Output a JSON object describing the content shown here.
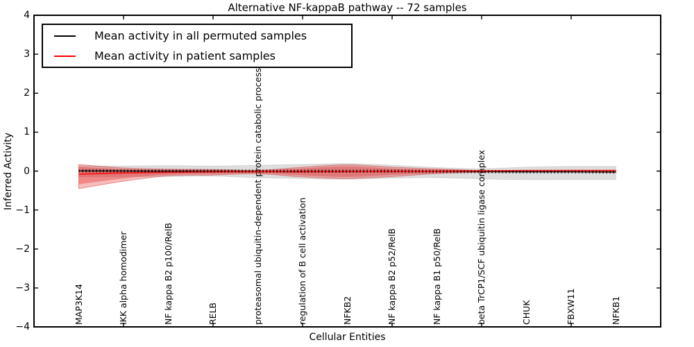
{
  "title": "Alternative NF-kappaB pathway -- 72 samples",
  "axes": {
    "xlabel": "Cellular Entities",
    "ylabel": "Inferred Activity",
    "ytick_labels": [
      "4",
      "3",
      "2",
      "1",
      "0",
      "−1",
      "−2",
      "−3",
      "−4"
    ]
  },
  "legend": {
    "entries": [
      {
        "label": "Mean activity in all permuted samples",
        "color": "#000000"
      },
      {
        "label": "Mean activity in patient samples",
        "color": "#ff0000"
      }
    ]
  },
  "colors": {
    "frame": "#000000",
    "background": "#ffffff",
    "permuted_line": "#000000",
    "patient_line": "#ff1a1a",
    "permuted_band_fill": "rgba(0,0,0,0.13)",
    "permuted_band_edge": "rgba(0,0,0,0.10)",
    "patient_band_fill": "rgba(227,36,36,0.30)",
    "patient_band_inner_fill": "rgba(227,36,36,0.34)",
    "patient_band_edge": "rgba(215,35,35,0.45)"
  },
  "chart_data": {
    "type": "line",
    "title": "Alternative NF-kappaB pathway -- 72 samples",
    "xlabel": "Cellular Entities",
    "ylabel": "Inferred Activity",
    "xlim": [
      0,
      14
    ],
    "ylim": [
      -4,
      4
    ],
    "yticks": [
      -4,
      -3,
      -2,
      -1,
      0,
      1,
      2,
      3,
      4
    ],
    "xticks": [
      2,
      4,
      6,
      8,
      10,
      12
    ],
    "grid": false,
    "legend_position": "upper left",
    "x": [
      1,
      2,
      3,
      4,
      5,
      6,
      7,
      8,
      9,
      10,
      11,
      12,
      13
    ],
    "categories": [
      "MAP3K14",
      "IKK alpha homodimer",
      "NF kappa B2 p100/RelB",
      "RELB",
      "proteasomal ubiquitin-dependent protein catabolic process",
      "regulation of B cell activation",
      "NFKB2",
      "NF kappa B2 p52/RelB",
      "NF kappa B1 p50/RelB",
      "beta TrCP1/SCF ubiquitin ligase complex",
      "CHUK",
      "FBXW11",
      "NFKB1"
    ],
    "series": [
      {
        "name": "Mean activity in all permuted samples",
        "color": "#000000",
        "values": [
          0.005,
          0.002,
          0.0,
          0.0,
          -0.002,
          -0.003,
          -0.003,
          -0.002,
          -0.01,
          -0.015,
          -0.02,
          -0.02,
          -0.025
        ]
      },
      {
        "name": "Mean activity in patient samples",
        "color": "#ff0000",
        "values": [
          -0.08,
          -0.05,
          -0.03,
          -0.02,
          -0.012,
          -0.015,
          -0.01,
          -0.008,
          -0.003,
          0.005,
          0.01,
          0.012,
          0.015
        ]
      }
    ],
    "bands": [
      {
        "name": "permuted-samples-band",
        "top": [
          0.13,
          0.13,
          0.14,
          0.13,
          0.15,
          0.17,
          0.19,
          0.15,
          0.09,
          0.06,
          0.1,
          0.12,
          0.12
        ],
        "bottom": [
          -0.15,
          -0.14,
          -0.14,
          -0.13,
          -0.17,
          -0.19,
          -0.21,
          -0.18,
          -0.17,
          -0.2,
          -0.22,
          -0.22,
          -0.22
        ]
      },
      {
        "name": "patient-samples-band-outer",
        "top": [
          0.17,
          0.08,
          0.05,
          0.04,
          0.02,
          0.1,
          0.16,
          0.1,
          0.055,
          0.015,
          0.01,
          0.012,
          0.02
        ],
        "bottom": [
          -0.45,
          -0.26,
          -0.12,
          -0.1,
          -0.07,
          -0.15,
          -0.19,
          -0.14,
          -0.065,
          -0.03,
          -0.025,
          -0.025,
          -0.04
        ]
      },
      {
        "name": "patient-samples-band-inner",
        "top": [
          0.11,
          0.05,
          0.03,
          0.025,
          0.013,
          0.07,
          0.12,
          0.065,
          0.035,
          0.01,
          0.008,
          0.008,
          0.013
        ],
        "bottom": [
          -0.34,
          -0.19,
          -0.09,
          -0.07,
          -0.05,
          -0.11,
          -0.15,
          -0.1,
          -0.05,
          -0.02,
          -0.018,
          -0.018,
          -0.03
        ]
      }
    ]
  }
}
